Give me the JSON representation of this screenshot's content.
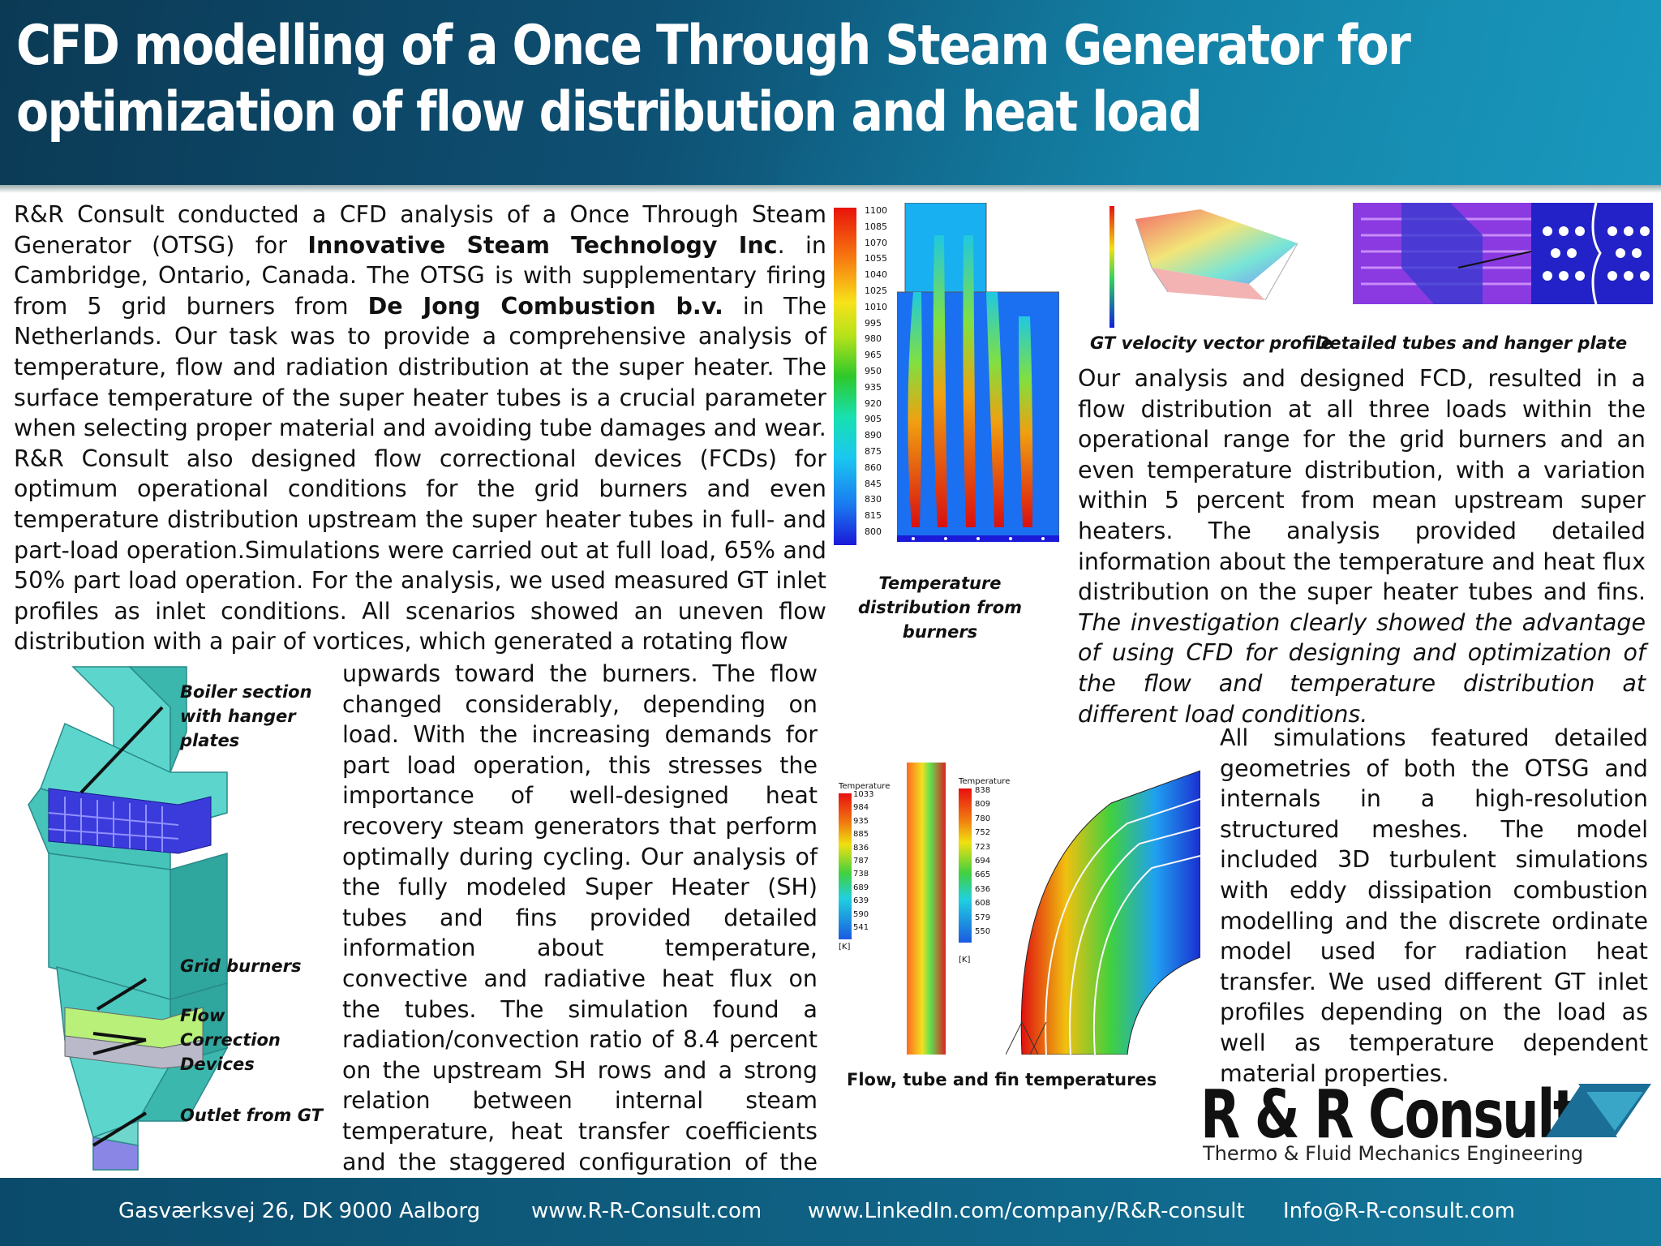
{
  "title": "CFD modelling of a Once Through Steam Generator for optimization of flow distribution and heat load",
  "intro": {
    "p1_a": "R&R Consult conducted a CFD analysis of a Once Through Steam Generator (OTSG) for ",
    "p1_b": "Innovative Steam Technology Inc",
    "p1_c": ". in Cambridge, Ontario, Canada. The OTSG is with supplementary firing from 5 grid burners from ",
    "p1_d": "De Jong Combustion b.v.",
    "p1_e": " in The Netherlands. Our task was to provide a comprehensive analysis of temperature, flow and radiation distribution at the super heater. The surface temperature of the super heater tubes is a crucial parameter when selecting proper material and avoiding tube damages and wear.",
    "p2": "R&R Consult also designed flow correctional devices (FCDs) for optimum operational conditions for the grid burners and even temperature distribution upstream the super heater tubes in full- and part-load operation.Simulations were carried out at full load, 65% and 50% part load operation. For the analysis, we used measured GT inlet profiles as inlet conditions. All scenarios showed an uneven flow distribution with a pair of vortices, which generated a rotating flow"
  },
  "column2": "upwards toward the burners. The flow changed considerably, depending on load. With the increasing demands for part load operation, this stresses the importance of well-designed heat recovery steam generators that perform optimally during cycling. Our analysis of the fully modeled Super Heater (SH) tubes and fins provided detailed information about temperature, convective and radiative heat flux on the tubes. The simulation found a radiation/convection ratio of 8.4 percent on the upstream SH rows and a strong relation between internal steam temperature, heat transfer coefficients and the staggered configuration of the SH rows.",
  "right_top": {
    "normal": "Our analysis and designed FCD, resulted in a flow distribution at all three loads within the operational range for the grid burners and an even temperature distribution, with a variation within 5 percent from mean upstream super heaters. The analysis provided detailed information about the temperature and heat flux distribution on the super heater tubes and fins. ",
    "italic": "The investigation clearly showed the advantage of using CFD for designing and optimization of the flow and temperature distribution at different load conditions."
  },
  "right_bottom": "All simulations featured detailed geometries of both the OTSG and internals in a high-resolution structured meshes. The model included 3D turbulent simulations with eddy dissipation combustion modelling and the discrete ordinate model used for radiation heat transfer.  We used different GT inlet profiles depending on the load as well as temperature dependent material properties.",
  "captions": {
    "boiler": "Boiler section with hanger plates",
    "grid": "Grid burners",
    "fcd": "Flow Correction Devices",
    "outlet": "Outlet from GT",
    "temp_dist": "Temperature distribution from burners",
    "gt_vel": "GT velocity vector profile",
    "tubes": "Detailed tubes and hanger plate",
    "flow_tube": "Flow, tube and fin temperatures"
  },
  "legend_burners": [
    "1100",
    "1085",
    "1070",
    "1055",
    "1040",
    "1025",
    "1010",
    "995",
    "980",
    "965",
    "950",
    "935",
    "920",
    "905",
    "890",
    "875",
    "860",
    "845",
    "830",
    "815",
    "800"
  ],
  "legend_tube1": {
    "title": "Temperature",
    "values": [
      "1033",
      "984",
      "935",
      "885",
      "836",
      "787",
      "738",
      "689",
      "639",
      "590",
      "541"
    ],
    "unit": "[K]"
  },
  "legend_tube2": {
    "title": "Temperature",
    "values": [
      "838",
      "809",
      "780",
      "752",
      "723",
      "694",
      "665",
      "636",
      "608",
      "579",
      "550"
    ],
    "unit": "[K]"
  },
  "logo": {
    "name": "R & R Consult",
    "sub": "Thermo & Fluid Mechanics Engineering"
  },
  "footer": {
    "address": "Gasværksvej 26, DK 9000 Aalborg",
    "web": "www.R-R-Consult.com",
    "linkedin": "www.LinkedIn.com/company/R&R-consult",
    "email": "Info@R-R-consult.com"
  },
  "colors": {
    "header": "#0e4f72",
    "footer": "#13789c",
    "logo_accent": "#1b6f97"
  }
}
